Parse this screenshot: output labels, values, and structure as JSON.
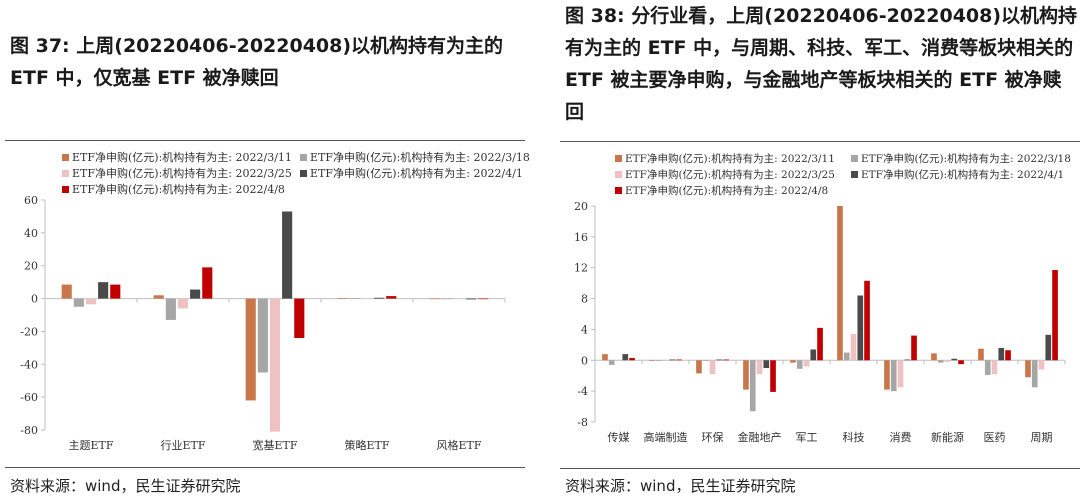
{
  "left": {
    "title": "图 37: 上周(20220406-20220408)以机构持有为主的 ETF 中，仅宽基 ETF 被净赎回",
    "source": "资料来源：wind，民生证券研究院"
  },
  "right": {
    "title": "图 38: 分行业看，上周(20220406-20220408)以机构持有为主的 ETF 中，与周期、科技、军工、消费等板块相关的 ETF 被主要净申购，与金融地产等板块相关的 ETF 被净赎回",
    "source": "资料来源：wind，民生证券研究院"
  },
  "colors": {
    "s1": "#c8764a",
    "s2": "#a6a6a6",
    "s3": "#efc1c3",
    "s4": "#4a4a4a",
    "s5": "#c00000"
  },
  "chart_data": [
    {
      "type": "bar",
      "title": "",
      "xlabel": "",
      "ylabel": "",
      "ylim": [
        -80,
        60
      ],
      "yticks": [
        60,
        40,
        20,
        0,
        -20,
        -40,
        -60,
        -80
      ],
      "legend_position": "top",
      "grid": false,
      "categories": [
        "主题ETF",
        "行业ETF",
        "宽基ETF",
        "策略ETF",
        "风格ETF"
      ],
      "series": [
        {
          "name": "ETF净申购(亿元):机构持有为主: 2022/3/11",
          "values": [
            8.5,
            2,
            -62,
            0.3,
            0
          ]
        },
        {
          "name": "ETF净申购(亿元):机构持有为主: 2022/3/18",
          "values": [
            -5,
            -13,
            -45,
            0.2,
            0
          ]
        },
        {
          "name": "ETF净申购(亿元):机构持有为主: 2022/3/25",
          "values": [
            -3.5,
            -6,
            -81,
            0.1,
            0
          ]
        },
        {
          "name": "ETF净申购(亿元):机构持有为主: 2022/4/1",
          "values": [
            10,
            5.5,
            53,
            0.5,
            -0.5
          ]
        },
        {
          "name": "ETF净申购(亿元):机构持有为主: 2022/4/8",
          "values": [
            8.5,
            19,
            -24,
            1.5,
            0
          ]
        }
      ]
    },
    {
      "type": "bar",
      "title": "",
      "xlabel": "",
      "ylabel": "",
      "ylim": [
        -8,
        20
      ],
      "yticks": [
        20,
        16,
        12,
        8,
        4,
        0,
        -4,
        -8
      ],
      "legend_position": "top",
      "grid": false,
      "categories": [
        "传媒",
        "高端制造",
        "环保",
        "金融地产",
        "军工",
        "科技",
        "消费",
        "新能源",
        "医药",
        "周期"
      ],
      "series": [
        {
          "name": "ETF净申购(亿元):机构持有为主: 2022/3/11",
          "values": [
            0.8,
            0,
            -1.7,
            -3.8,
            -0.3,
            20,
            -3.8,
            0.9,
            1.5,
            -2.2
          ]
        },
        {
          "name": "ETF净申购(亿元):机构持有为主: 2022/3/18",
          "values": [
            -0.6,
            0,
            0,
            -6.6,
            -1.1,
            1,
            -4,
            -0.3,
            -1.9,
            -3.5
          ]
        },
        {
          "name": "ETF净申购(亿元):机构持有为主: 2022/3/25",
          "values": [
            0,
            0,
            -1.8,
            -1.8,
            -0.8,
            3.4,
            -3.5,
            -0.2,
            -1.8,
            -1.2
          ]
        },
        {
          "name": "ETF净申购(亿元):机构持有为主: 2022/4/1",
          "values": [
            0.8,
            0.1,
            0.1,
            -1,
            1.4,
            8.4,
            0.1,
            0.2,
            1.6,
            3.3
          ]
        },
        {
          "name": "ETF净申购(亿元):机构持有为主: 2022/4/8",
          "values": [
            0.3,
            0.1,
            0.1,
            -4.1,
            4.2,
            10.3,
            3.2,
            -0.5,
            1.3,
            11.7
          ]
        }
      ]
    }
  ]
}
